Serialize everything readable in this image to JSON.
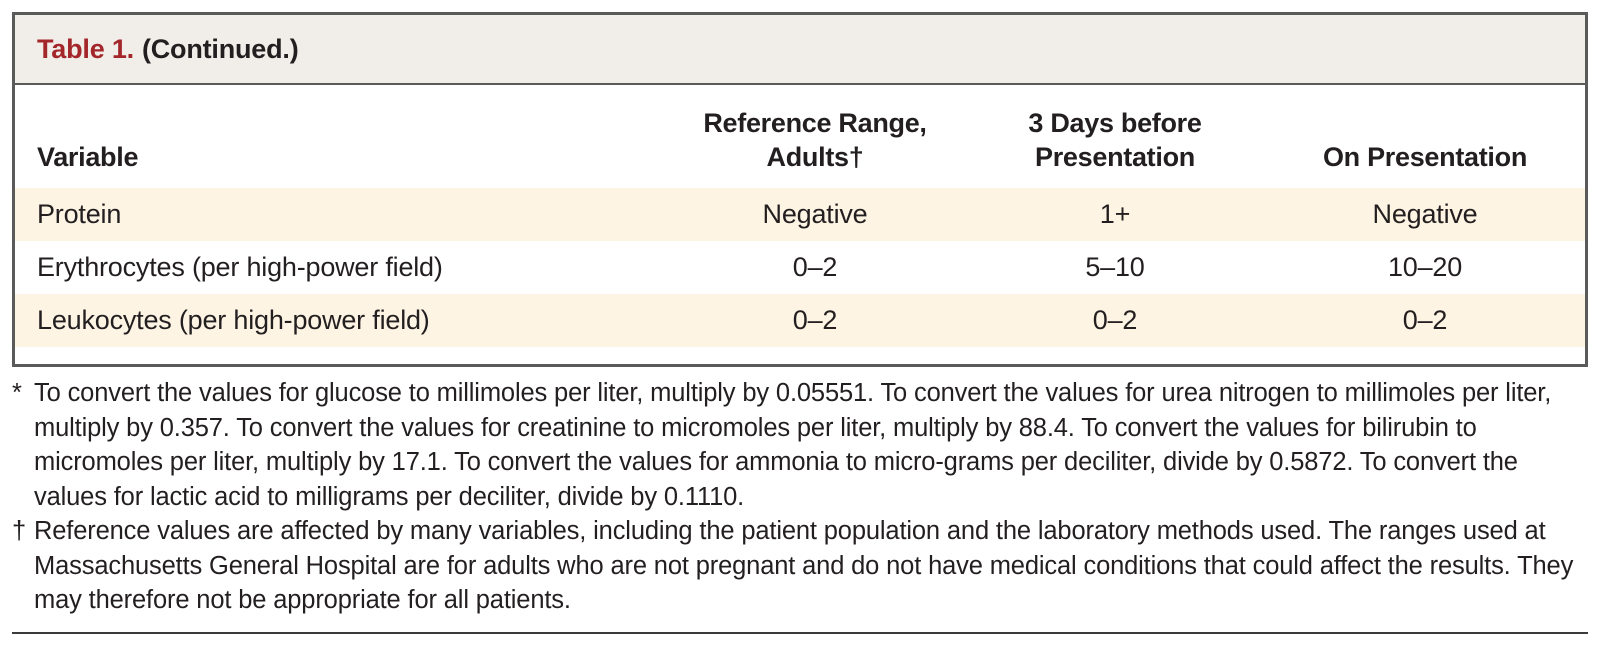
{
  "table": {
    "label": "Table 1.",
    "caption": "(Continued.)",
    "headers": {
      "variable": "Variable",
      "reference_line1": "Reference Range,",
      "reference_line2": "Adults†",
      "three_days_line1": "3 Days before",
      "three_days_line2": "Presentation",
      "on_presentation": "On Presentation"
    },
    "rows": [
      {
        "variable": "Protein",
        "reference": "Negative",
        "three_days": "1+",
        "on_presentation": "Negative"
      },
      {
        "variable": "Erythrocytes (per high-power field)",
        "reference": "0–2",
        "three_days": "5–10",
        "on_presentation": "10–20"
      },
      {
        "variable": "Leukocytes (per high-power field)",
        "reference": "0–2",
        "three_days": "0–2",
        "on_presentation": "0–2"
      }
    ]
  },
  "footnotes": [
    {
      "mark": "*",
      "text": "To convert the values for glucose to millimoles per liter, multiply by 0.05551. To convert the values for urea nitrogen to millimoles per liter, multiply by 0.357. To convert the values for creatinine to micromoles per liter, multiply by 88.4. To convert the values for bilirubin to micromoles per liter, multiply by 17.1. To convert the values for ammonia to micro-grams per deciliter, divide by 0.5872. To convert the values for lactic acid to milligrams per deciliter, divide by 0.1110."
    },
    {
      "mark": "†",
      "text": "Reference values are affected by many variables, including the patient population and the laboratory methods used. The ranges used at Massachusetts General Hospital are for adults who are not pregnant and do not have medical conditions that could affect the results. They may therefore not be appropriate for all patients."
    }
  ],
  "colors": {
    "label": "#a3262a",
    "title_bg": "#f1ede8",
    "shaded_row": "#fdf4e3",
    "border": "#5a5a5a"
  }
}
